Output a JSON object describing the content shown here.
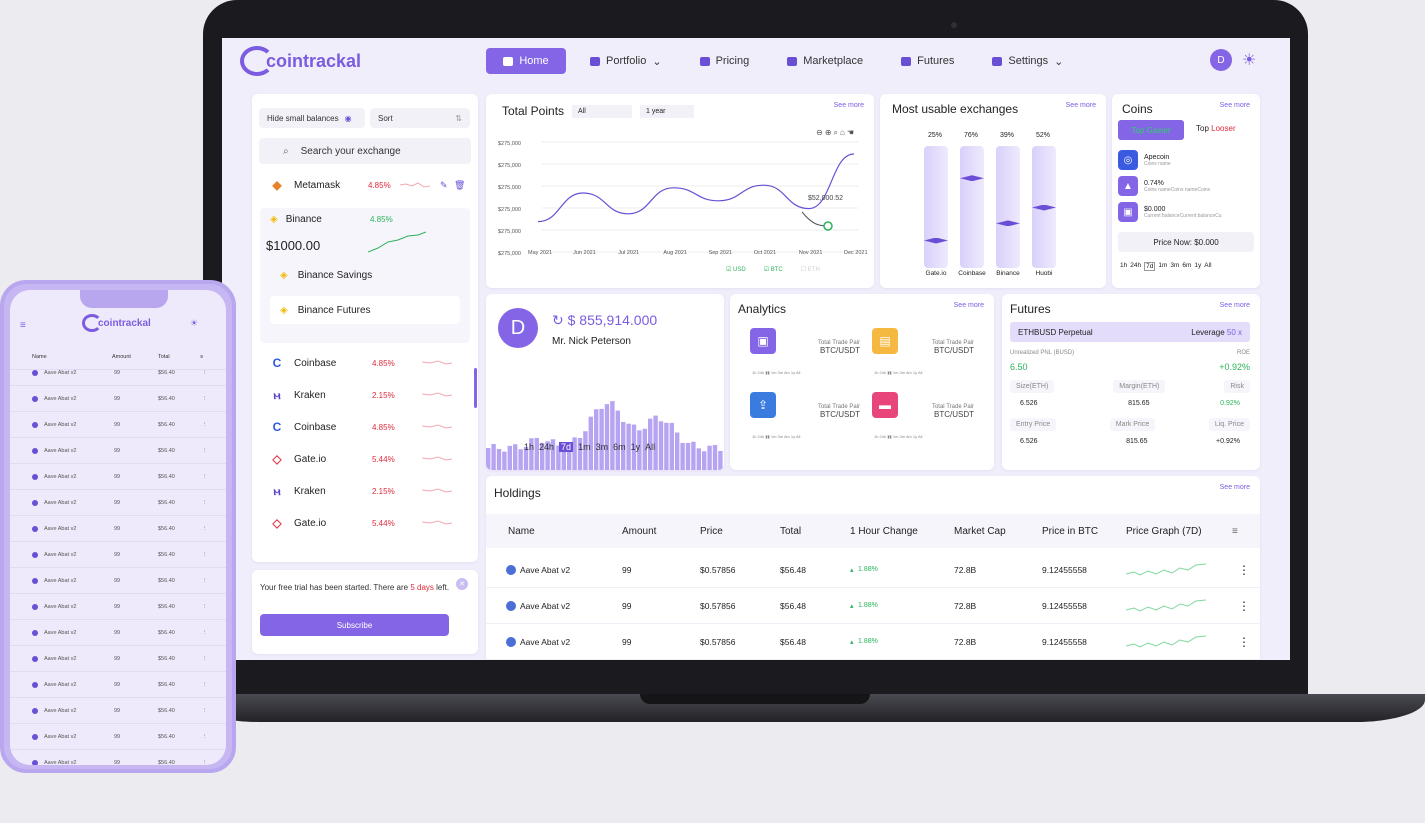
{
  "app": {
    "logo": "cointrackal"
  },
  "nav": {
    "items": [
      {
        "label": "Home"
      },
      {
        "label": "Portfolio"
      },
      {
        "label": "Pricing"
      },
      {
        "label": "Marketplace"
      },
      {
        "label": "Futures"
      },
      {
        "label": "Settings"
      }
    ],
    "avatar": "D"
  },
  "left_panel": {
    "hide_small": "Hide small balances",
    "sort": "Sort",
    "search_placeholder": "Search your exchange",
    "exchanges": [
      {
        "name": "Metamask",
        "pct": "4.85%",
        "icon": "fox-icon"
      },
      {
        "name": "Binance",
        "pct": "4.85%",
        "balance": "$1000.00",
        "icon": "binance-icon"
      },
      {
        "name": "Binance Savings",
        "icon": "binance-icon"
      },
      {
        "name": "Binance Futures",
        "icon": "binance-icon"
      },
      {
        "name": "Coinbase",
        "pct": "4.85%",
        "icon": "coinbase-icon"
      },
      {
        "name": "Kraken",
        "pct": "2.15%",
        "icon": "kraken-icon"
      },
      {
        "name": "Coinbase",
        "pct": "4.85%",
        "icon": "coinbase-icon"
      },
      {
        "name": "Gate.io",
        "pct": "5.44%",
        "icon": "gateio-icon"
      },
      {
        "name": "Kraken",
        "pct": "2.15%",
        "icon": "kraken-icon"
      },
      {
        "name": "Gate.io",
        "pct": "5.44%",
        "icon": "gateio-icon"
      }
    ],
    "trial_text_1": "Your free trial has been started. There are",
    "trial_days": "5 days",
    "trial_text_2": "left.",
    "subscribe": "Subscribe"
  },
  "total_points": {
    "title": "Total Points",
    "filter_all": "All",
    "filter_period": "1 year",
    "see_more": "See more",
    "y_ticks": [
      "$275,000",
      "$275,000",
      "$275,000",
      "$275,000",
      "$275,000",
      "$275,000"
    ],
    "x_ticks": [
      "May 2021",
      "Jun 2021",
      "Jul 2021",
      "Aug 2021",
      "Sep 2021",
      "Oct 2021",
      "Nov 2021",
      "Dec 2021"
    ],
    "tooltip": "$52,000.52",
    "legend": [
      "USD",
      "BTC",
      "ETH"
    ]
  },
  "chart_data": {
    "type": "line",
    "x": [
      "May 2021",
      "Jun 2021",
      "Jul 2021",
      "Aug 2021",
      "Sep 2021",
      "Oct 2021",
      "Nov 2021",
      "Dec 2021"
    ],
    "series": [
      {
        "name": "USD",
        "values": [
          0.2,
          0.75,
          0.35,
          0.85,
          0.6,
          0.9,
          0.45,
          1.5
        ]
      }
    ],
    "title": "Total Points"
  },
  "exchanges_usage": {
    "title": "Most usable exchanges",
    "see_more": "See more",
    "bars": [
      {
        "name": "Gate.io",
        "pct": "25%",
        "level": 0.25
      },
      {
        "name": "Coinbase",
        "pct": "76%",
        "level": 0.76
      },
      {
        "name": "Binance",
        "pct": "39%",
        "level": 0.39
      },
      {
        "name": "Huobi",
        "pct": "52%",
        "level": 0.52
      }
    ]
  },
  "coins": {
    "title": "Coins",
    "see_more": "See more",
    "tab_gainer": "Top Gainer",
    "tab_loser_1": "Top",
    "tab_loser_2": "Looser",
    "items": [
      {
        "value": "Apecoin",
        "sub": "Coins name"
      },
      {
        "value": "0.74%",
        "sub": "Coins nameCoins nameCoins"
      },
      {
        "value": "$0.000",
        "sub": "Current balanceCurrent balanceCu"
      }
    ],
    "price_now": "Price Now: $0.000",
    "periods": [
      "1h",
      "24h",
      "7d",
      "1m",
      "3m",
      "6m",
      "1y",
      "All"
    ]
  },
  "profile": {
    "initial": "D",
    "balance": "$ 855,914.000",
    "name": "Mr. Nick Peterson",
    "periods": [
      "1h",
      "24h",
      "7d",
      "1m",
      "3m",
      "6m",
      "1y",
      "All"
    ]
  },
  "analytics": {
    "title": "Analytics",
    "see_more": "See more",
    "items": [
      {
        "label": "Total Trade Pair",
        "pair": "BTC/USDT",
        "color": "#8465e6"
      },
      {
        "label": "Total Trade Pair",
        "pair": "BTC/USDT",
        "color": "#f5b942"
      },
      {
        "label": "Total Trade Pair",
        "pair": "BTC/USDT",
        "color": "#3a7be0"
      },
      {
        "label": "Total Trade Pair",
        "pair": "BTC/USDT",
        "color": "#e8457a"
      }
    ]
  },
  "futures": {
    "title": "Futures",
    "see_more": "See more",
    "pair": "ETHBUSD Perpetual",
    "leverage_label": "Leverage",
    "leverage": "50 x",
    "pnl_label": "Unrealized PNL (BUSD)",
    "roe_label": "ROE",
    "pnl": "6.50",
    "roe": "+0.92%",
    "cols1": [
      "Size(ETH)",
      "Margin(ETH)",
      "Risk"
    ],
    "vals1": [
      "6.526",
      "815.65",
      "0.92%"
    ],
    "cols2": [
      "Entry Price",
      "Mark Price",
      "Liq. Price"
    ],
    "vals2": [
      "6.526",
      "815.65",
      "+0.92%"
    ]
  },
  "holdings": {
    "title": "Holdings",
    "see_more": "See more",
    "columns": [
      "Name",
      "Amount",
      "Price",
      "Total",
      "1 Hour Change",
      "Market Cap",
      "Price in BTC",
      "Price Graph (7D)"
    ],
    "rows": [
      {
        "name": "Aave Abat v2",
        "amount": "99",
        "price": "$0.57856",
        "total": "$56.48",
        "change": "1.88%",
        "mcap": "72.8B",
        "btc": "9.12455558"
      },
      {
        "name": "Aave Abat v2",
        "amount": "99",
        "price": "$0.57856",
        "total": "$56.48",
        "change": "1.88%",
        "mcap": "72.8B",
        "btc": "9.12455558"
      },
      {
        "name": "Aave Abat v2",
        "amount": "99",
        "price": "$0.57856",
        "total": "$56.48",
        "change": "1.88%",
        "mcap": "72.8B",
        "btc": "9.12455558"
      }
    ]
  },
  "phone": {
    "logo": "cointrackal",
    "columns": [
      "Name",
      "Amount",
      "Total"
    ],
    "row": {
      "name": "Aave Abat v2",
      "amount": "99",
      "total": "$56.40"
    }
  }
}
